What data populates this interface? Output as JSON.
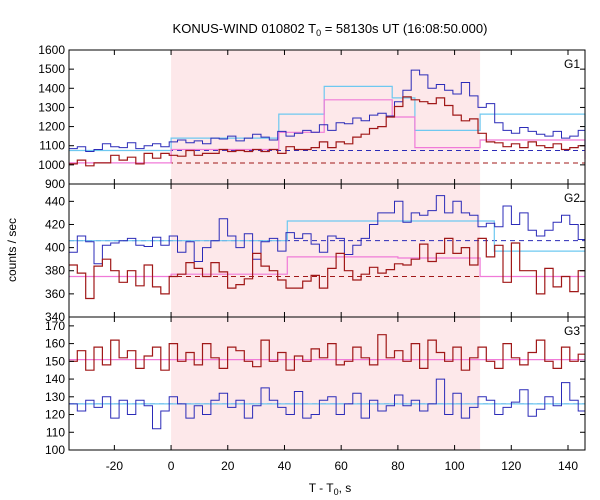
{
  "chart_data": {
    "type": "line",
    "title_parts": [
      "KONUS-WIND 010802 T",
      "0",
      " = 58130s UT (16:08:50.000)"
    ],
    "xlabel_parts": [
      "T - T",
      "0",
      ", s"
    ],
    "ylabel": "counts / sec",
    "xlim": [
      -36,
      146
    ],
    "xticks": [
      -20,
      0,
      20,
      40,
      60,
      80,
      100,
      120,
      140
    ],
    "highlight_interval": [
      0,
      109
    ],
    "colors": {
      "highlight": "#fde8ea",
      "blue": "#2b2bb8",
      "red": "#a01818",
      "cyan": "#6ec8f0",
      "pink": "#f07ad8",
      "frame": "#000000",
      "grid": "#cccccc"
    },
    "panels": [
      {
        "label": "G1",
        "ylim": [
          900,
          1600
        ],
        "yticks": [
          900,
          1000,
          1100,
          1200,
          1300,
          1400,
          1500,
          1600
        ],
        "bin_width": 2.944,
        "blue_series": [
          1085,
          1095,
          1070,
          1080,
          1110,
          1095,
          1090,
          1115,
          1085,
          1100,
          1110,
          1095,
          1120,
          1130,
          1115,
          1125,
          1110,
          1140,
          1135,
          1150,
          1125,
          1140,
          1160,
          1145,
          1130,
          1175,
          1150,
          1165,
          1180,
          1170,
          1210,
          1180,
          1220,
          1215,
          1245,
          1230,
          1260,
          1270,
          1255,
          1330,
          1390,
          1495,
          1470,
          1400,
          1420,
          1390,
          1370,
          1430,
          1360,
          1300,
          1320,
          1220,
          1180,
          1165,
          1195,
          1175,
          1160,
          1150,
          1175,
          1140,
          1150,
          1180,
          1290,
          1280,
          1210,
          1130,
          1120,
          1095,
          1110,
          1080,
          1090,
          1070,
          1085,
          1100,
          1075,
          1085,
          1070,
          1095,
          1110,
          1060,
          1095,
          1100,
          1075,
          1080,
          1085,
          1115,
          1090,
          1075,
          1100,
          1080,
          1100,
          1085
        ],
        "red_series": [
          1005,
          1025,
          995,
          1010,
          1010,
          1050,
          1025,
          1040,
          1005,
          1060,
          1035,
          1060,
          1050,
          1045,
          1075,
          1050,
          1060,
          1060,
          1080,
          1070,
          1075,
          1070,
          1080,
          1070,
          1080,
          1060,
          1095,
          1080,
          1080,
          1090,
          1120,
          1090,
          1120,
          1110,
          1145,
          1160,
          1190,
          1200,
          1250,
          1305,
          1355,
          1340,
          1330,
          1320,
          1350,
          1310,
          1260,
          1230,
          1240,
          1165,
          1120,
          1115,
          1095,
          1110,
          1090,
          1120,
          1100,
          1090,
          1110,
          1080,
          1090,
          1100,
          1130,
          1150,
          1150,
          1145,
          1080,
          1055,
          1040,
          1045,
          1020,
          1045,
          1040,
          1055,
          1050,
          1030,
          1035,
          1050,
          1020,
          1050,
          1045,
          1025,
          1030,
          1030,
          1025,
          1020,
          1040,
          1040,
          1030
        ],
        "blue_background": 1075,
        "red_background": 1010,
        "blue_coarse": {
          "edges": [
            -36,
            0,
            38,
            54,
            78,
            86,
            109,
            146
          ],
          "values": [
            1075,
            1140,
            1265,
            1410,
            1350,
            1180,
            1265,
            1085
          ]
        },
        "red_coarse": {
          "edges": [
            -36,
            0,
            38,
            54,
            78,
            86,
            109,
            146
          ],
          "values": [
            1010,
            1080,
            1170,
            1340,
            1250,
            1090,
            1130,
            1030
          ]
        }
      },
      {
        "label": "G2",
        "ylim": [
          340,
          455
        ],
        "yticks": [
          340,
          360,
          380,
          400,
          420,
          440
        ],
        "bin_width": 2.944,
        "blue_series": [
          396,
          410,
          405,
          386,
          402,
          404,
          406,
          408,
          402,
          401,
          409,
          402,
          410,
          396,
          405,
          388,
          400,
          406,
          425,
          410,
          400,
          412,
          390,
          405,
          408,
          397,
          413,
          408,
          412,
          403,
          396,
          410,
          408,
          394,
          402,
          408,
          420,
          430,
          430,
          440,
          422,
          430,
          428,
          432,
          445,
          430,
          440,
          430,
          428,
          418,
          421,
          418,
          436,
          420,
          430,
          415,
          410,
          415,
          422,
          428,
          420,
          407,
          410,
          405,
          410,
          420,
          402,
          405,
          396,
          412,
          400,
          395,
          395,
          398,
          388,
          398,
          395,
          382,
          392,
          400,
          399,
          400,
          404,
          397,
          390,
          400,
          395,
          398,
          406,
          404
        ],
        "red_series": [
          385,
          378,
          356,
          384,
          390,
          380,
          370,
          380,
          367,
          385,
          366,
          360,
          375,
          377,
          387,
          382,
          375,
          387,
          379,
          365,
          368,
          373,
          395,
          384,
          380,
          372,
          365,
          365,
          371,
          376,
          365,
          382,
          395,
          380,
          372,
          377,
          383,
          378,
          381,
          386,
          385,
          390,
          403,
          388,
          395,
          408,
          395,
          400,
          385,
          408,
          392,
          402,
          370,
          404,
          380,
          380,
          360,
          382,
          366,
          375,
          362,
          380,
          362,
          372,
          391,
          383,
          375,
          388,
          365,
          363,
          372,
          355,
          372,
          373,
          385,
          370,
          385,
          369,
          360,
          375,
          362,
          376,
          375,
          368,
          380,
          369,
          365,
          372,
          374,
          375
        ],
        "blue_background": 406,
        "red_background": 375,
        "blue_coarse": {
          "edges": [
            -36,
            0,
            41,
            109,
            114,
            146
          ],
          "values": [
            406,
            406,
            423,
            423,
            397,
            397
          ]
        },
        "red_coarse": {
          "edges": [
            -36,
            0,
            41,
            80,
            109,
            146
          ],
          "values": [
            375,
            377,
            392,
            391,
            375,
            375
          ]
        }
      },
      {
        "label": "G3",
        "ylim": [
          100,
          175
        ],
        "yticks": [
          100,
          110,
          120,
          130,
          140,
          150,
          160,
          170
        ],
        "bin_width": 2.944,
        "blue_series": [
          126,
          122,
          128,
          124,
          130,
          118,
          128,
          120,
          128,
          125,
          112,
          122,
          130,
          126,
          118,
          125,
          120,
          128,
          132,
          124,
          128,
          118,
          125,
          135,
          128,
          124,
          120,
          133,
          118,
          120,
          128,
          130,
          120,
          126,
          132,
          118,
          128,
          122,
          125,
          131,
          125,
          128,
          122,
          126,
          140,
          120,
          132,
          118,
          124,
          130,
          128,
          120,
          124,
          127,
          134,
          119,
          123,
          130,
          125,
          138,
          128,
          122,
          118,
          130,
          128,
          120,
          125,
          132,
          124,
          120,
          128,
          126,
          128,
          124,
          120,
          130,
          126,
          134,
          122,
          118,
          124,
          128,
          122,
          130,
          118,
          126,
          130,
          124,
          120,
          130,
          126,
          132
        ],
        "red_series": [
          150,
          156,
          145,
          158,
          148,
          162,
          152,
          156,
          146,
          153,
          158,
          145,
          160,
          150,
          155,
          148,
          160,
          152,
          146,
          158,
          156,
          150,
          147,
          162,
          150,
          155,
          145,
          153,
          150,
          157,
          152,
          160,
          148,
          150,
          158,
          152,
          148,
          165,
          152,
          156,
          150,
          160,
          146,
          162,
          155,
          150,
          158,
          145,
          152,
          158,
          150,
          146,
          160,
          152,
          148,
          155,
          162,
          150,
          146,
          158,
          150,
          154,
          160,
          148,
          152,
          150,
          156,
          148,
          160,
          152,
          145,
          155,
          150,
          160,
          158,
          148,
          154,
          150,
          162,
          150,
          145,
          158,
          152,
          148,
          160,
          150,
          156,
          145,
          152,
          158,
          150,
          148,
          152
        ],
        "blue_background": 126,
        "red_background": 151,
        "blue_coarse": {
          "edges": [
            -36,
            146
          ],
          "values": [
            126
          ]
        },
        "red_coarse": {
          "edges": [
            -36,
            146
          ],
          "values": [
            151
          ]
        }
      }
    ]
  }
}
